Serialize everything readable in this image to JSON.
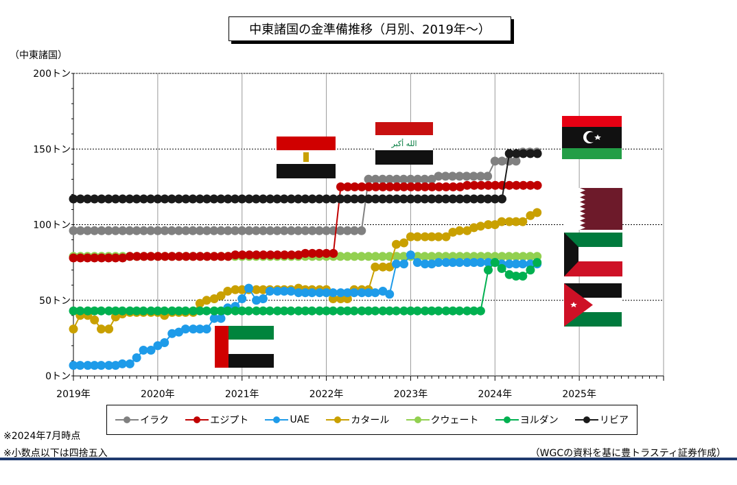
{
  "chart_data": {
    "type": "line",
    "title": "中東諸国の金準備推移（月別、2019年～）",
    "ylabel": "（中東諸国）",
    "ylim": [
      0,
      200
    ],
    "yticks": [
      0,
      50,
      100,
      150,
      200
    ],
    "ytick_labels": [
      "0トン",
      "50トン",
      "100トン",
      "150トン",
      "200トン"
    ],
    "xlim": [
      2019.0,
      2026.0
    ],
    "xticks": [
      2019,
      2020,
      2021,
      2022,
      2023,
      2024,
      2025
    ],
    "xtick_labels": [
      "2019年",
      "2020年",
      "2021年",
      "2022年",
      "2023年",
      "2024年",
      "2025年"
    ],
    "grid": true,
    "legend_position": "bottom",
    "series": [
      {
        "name": "イラク",
        "color": "#808080",
        "segments": [
          {
            "from": 2019.0,
            "to": 2022.42,
            "value": 96
          },
          {
            "from": 2022.5,
            "to": 2023.25,
            "value": 130
          },
          {
            "from": 2023.33,
            "to": 2023.92,
            "value": 132
          },
          {
            "from": 2024.0,
            "to": 2024.25,
            "value": 142
          },
          {
            "from": 2024.33,
            "to": 2024.5,
            "value": 148
          }
        ]
      },
      {
        "name": "エジプト",
        "color": "#c00000",
        "segments": [
          {
            "from": 2019.0,
            "to": 2019.58,
            "value": 78
          },
          {
            "from": 2019.67,
            "to": 2020.83,
            "value": 79
          },
          {
            "from": 2020.92,
            "to": 2021.67,
            "value": 80
          },
          {
            "from": 2021.75,
            "to": 2022.08,
            "value": 81
          },
          {
            "from": 2022.17,
            "to": 2023.58,
            "value": 125
          },
          {
            "from": 2023.67,
            "to": 2024.5,
            "value": 126
          }
        ]
      },
      {
        "name": "UAE",
        "color": "#1e9be9",
        "points": [
          [
            2019.0,
            7
          ],
          [
            2019.08,
            7
          ],
          [
            2019.17,
            7
          ],
          [
            2019.25,
            7
          ],
          [
            2019.33,
            7
          ],
          [
            2019.42,
            7
          ],
          [
            2019.5,
            7
          ],
          [
            2019.58,
            8
          ],
          [
            2019.67,
            8
          ],
          [
            2019.75,
            12
          ],
          [
            2019.83,
            17
          ],
          [
            2019.92,
            17
          ],
          [
            2020.0,
            20
          ],
          [
            2020.08,
            22
          ],
          [
            2020.17,
            28
          ],
          [
            2020.25,
            29
          ],
          [
            2020.33,
            31
          ],
          [
            2020.42,
            31
          ],
          [
            2020.5,
            31
          ],
          [
            2020.58,
            31
          ],
          [
            2020.67,
            38
          ],
          [
            2020.75,
            38
          ],
          [
            2020.83,
            45
          ],
          [
            2020.92,
            46
          ],
          [
            2021.0,
            51
          ],
          [
            2021.08,
            58
          ],
          [
            2021.17,
            50
          ],
          [
            2021.25,
            51
          ],
          [
            2021.33,
            56
          ],
          [
            2021.42,
            56
          ],
          [
            2021.5,
            56
          ],
          [
            2021.58,
            56
          ],
          [
            2021.67,
            55
          ],
          [
            2021.75,
            55
          ],
          [
            2021.83,
            55
          ],
          [
            2021.92,
            55
          ],
          [
            2022.0,
            55
          ],
          [
            2022.08,
            55
          ],
          [
            2022.17,
            55
          ],
          [
            2022.25,
            55
          ],
          [
            2022.33,
            55
          ],
          [
            2022.42,
            55
          ],
          [
            2022.5,
            55
          ],
          [
            2022.58,
            55
          ],
          [
            2022.67,
            56
          ],
          [
            2022.75,
            54
          ],
          [
            2022.83,
            74
          ],
          [
            2022.92,
            74
          ],
          [
            2023.0,
            80
          ],
          [
            2023.08,
            75
          ],
          [
            2023.17,
            74
          ],
          [
            2023.25,
            74
          ],
          [
            2023.33,
            75
          ],
          [
            2023.42,
            75
          ],
          [
            2023.5,
            75
          ],
          [
            2023.58,
            75
          ],
          [
            2023.67,
            75
          ],
          [
            2023.75,
            75
          ],
          [
            2023.83,
            75
          ],
          [
            2023.92,
            75
          ],
          [
            2024.0,
            75
          ],
          [
            2024.08,
            74
          ],
          [
            2024.17,
            74
          ],
          [
            2024.25,
            74
          ],
          [
            2024.33,
            74
          ],
          [
            2024.42,
            74
          ],
          [
            2024.5,
            74
          ]
        ]
      },
      {
        "name": "カタール",
        "color": "#c9a000",
        "points": [
          [
            2019.0,
            31
          ],
          [
            2019.08,
            40
          ],
          [
            2019.17,
            40
          ],
          [
            2019.25,
            37
          ],
          [
            2019.33,
            31
          ],
          [
            2019.42,
            31
          ],
          [
            2019.5,
            39
          ],
          [
            2019.58,
            41
          ],
          [
            2019.67,
            42
          ],
          [
            2019.75,
            42
          ],
          [
            2019.83,
            42
          ],
          [
            2019.92,
            42
          ],
          [
            2020.0,
            42
          ],
          [
            2020.08,
            40
          ],
          [
            2020.17,
            42
          ],
          [
            2020.25,
            42
          ],
          [
            2020.33,
            42
          ],
          [
            2020.42,
            42
          ],
          [
            2020.5,
            48
          ],
          [
            2020.58,
            50
          ],
          [
            2020.67,
            51
          ],
          [
            2020.75,
            53
          ],
          [
            2020.83,
            56
          ],
          [
            2020.92,
            57
          ],
          [
            2021.0,
            57
          ],
          [
            2021.08,
            57
          ],
          [
            2021.17,
            57
          ],
          [
            2021.25,
            57
          ],
          [
            2021.33,
            57
          ],
          [
            2021.42,
            57
          ],
          [
            2021.5,
            57
          ],
          [
            2021.58,
            57
          ],
          [
            2021.67,
            58
          ],
          [
            2021.75,
            57
          ],
          [
            2021.83,
            57
          ],
          [
            2021.92,
            57
          ],
          [
            2022.0,
            57
          ],
          [
            2022.08,
            51
          ],
          [
            2022.17,
            51
          ],
          [
            2022.25,
            51
          ],
          [
            2022.33,
            57
          ],
          [
            2022.42,
            57
          ],
          [
            2022.5,
            57
          ],
          [
            2022.58,
            72
          ],
          [
            2022.67,
            72
          ],
          [
            2022.75,
            72
          ],
          [
            2022.83,
            87
          ],
          [
            2022.92,
            88
          ],
          [
            2023.0,
            92
          ],
          [
            2023.08,
            92
          ],
          [
            2023.17,
            92
          ],
          [
            2023.25,
            92
          ],
          [
            2023.33,
            92
          ],
          [
            2023.42,
            92
          ],
          [
            2023.5,
            95
          ],
          [
            2023.58,
            96
          ],
          [
            2023.67,
            96
          ],
          [
            2023.75,
            98
          ],
          [
            2023.83,
            99
          ],
          [
            2023.92,
            100
          ],
          [
            2024.0,
            100
          ],
          [
            2024.08,
            102
          ],
          [
            2024.17,
            102
          ],
          [
            2024.25,
            102
          ],
          [
            2024.33,
            102
          ],
          [
            2024.42,
            106
          ],
          [
            2024.5,
            108
          ]
        ]
      },
      {
        "name": "クウェート",
        "color": "#92d050",
        "segments": [
          {
            "from": 2019.0,
            "to": 2024.5,
            "value": 79
          }
        ]
      },
      {
        "name": "ヨルダン",
        "color": "#00b050",
        "points": [
          [
            2019.0,
            43
          ],
          [
            2019.08,
            43
          ],
          [
            2019.17,
            43
          ],
          [
            2019.25,
            43
          ],
          [
            2019.33,
            43
          ],
          [
            2019.42,
            43
          ],
          [
            2019.5,
            43
          ],
          [
            2019.58,
            43
          ],
          [
            2019.67,
            43
          ],
          [
            2019.75,
            43
          ],
          [
            2019.83,
            43
          ],
          [
            2019.92,
            43
          ],
          [
            2020.0,
            43
          ],
          [
            2020.08,
            43
          ],
          [
            2020.17,
            43
          ],
          [
            2020.25,
            43
          ],
          [
            2020.33,
            43
          ],
          [
            2020.42,
            43
          ],
          [
            2020.5,
            43
          ],
          [
            2020.58,
            43
          ],
          [
            2020.67,
            43
          ],
          [
            2020.75,
            43
          ],
          [
            2020.83,
            43
          ],
          [
            2020.92,
            43
          ],
          [
            2021.0,
            43
          ],
          [
            2021.08,
            43
          ],
          [
            2021.17,
            43
          ],
          [
            2021.25,
            43
          ],
          [
            2021.33,
            43
          ],
          [
            2021.42,
            43
          ],
          [
            2021.5,
            43
          ],
          [
            2021.58,
            43
          ],
          [
            2021.67,
            43
          ],
          [
            2021.75,
            43
          ],
          [
            2021.83,
            43
          ],
          [
            2021.92,
            43
          ],
          [
            2022.0,
            43
          ],
          [
            2022.08,
            43
          ],
          [
            2022.17,
            43
          ],
          [
            2022.25,
            43
          ],
          [
            2022.33,
            43
          ],
          [
            2022.42,
            43
          ],
          [
            2022.5,
            43
          ],
          [
            2022.58,
            43
          ],
          [
            2022.67,
            43
          ],
          [
            2022.75,
            43
          ],
          [
            2022.83,
            43
          ],
          [
            2022.92,
            43
          ],
          [
            2023.0,
            43
          ],
          [
            2023.08,
            43
          ],
          [
            2023.17,
            43
          ],
          [
            2023.25,
            43
          ],
          [
            2023.33,
            43
          ],
          [
            2023.42,
            43
          ],
          [
            2023.5,
            43
          ],
          [
            2023.58,
            43
          ],
          [
            2023.67,
            43
          ],
          [
            2023.75,
            43
          ],
          [
            2023.83,
            43
          ],
          [
            2023.92,
            70
          ],
          [
            2024.0,
            75
          ],
          [
            2024.08,
            71
          ],
          [
            2024.17,
            67
          ],
          [
            2024.25,
            66
          ],
          [
            2024.33,
            66
          ],
          [
            2024.42,
            70
          ],
          [
            2024.5,
            75
          ]
        ]
      },
      {
        "name": "リビア",
        "color": "#1a1a1a",
        "segments": [
          {
            "from": 2019.0,
            "to": 2024.08,
            "value": 117
          },
          {
            "from": 2024.17,
            "to": 2024.5,
            "value": 147
          }
        ]
      }
    ]
  },
  "legend": {
    "items": [
      {
        "label": "イラク",
        "color": "#808080"
      },
      {
        "label": "エジプト",
        "color": "#c00000"
      },
      {
        "label": "UAE",
        "color": "#1e9be9"
      },
      {
        "label": "カタール",
        "color": "#c9a000"
      },
      {
        "label": "クウェート",
        "color": "#92d050"
      },
      {
        "label": "ヨルダン",
        "color": "#00b050"
      },
      {
        "label": "リビア",
        "color": "#1a1a1a"
      }
    ]
  },
  "flags": [
    "egypt-flag",
    "iraq-flag",
    "libya-flag",
    "qatar-flag",
    "kuwait-flag",
    "jordan-flag",
    "uae-flag"
  ],
  "iraq_flag_text": "الله أكبر",
  "notes": {
    "note1": "※2024年7月時点",
    "note2": "※小数点以下は四捨五入"
  },
  "source": "（WGCの資料を基に豊トラスティ証券作成）"
}
